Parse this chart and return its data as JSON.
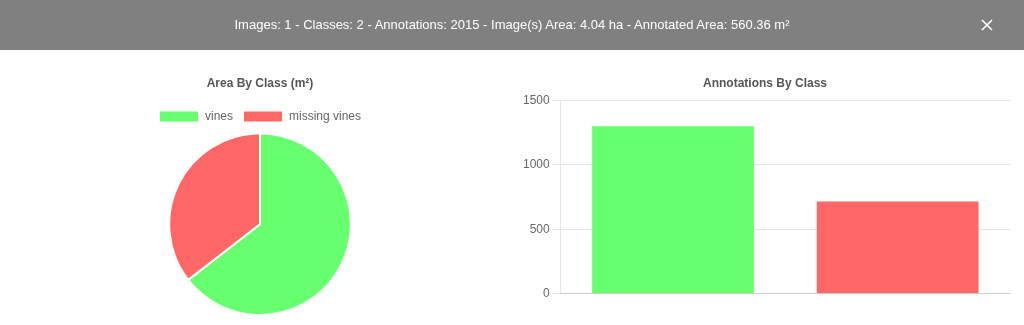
{
  "chart_data": [
    {
      "type": "other",
      "title": "Images: 1 - Classes: 2 - Annotations: 2015 - Image(s) Area: 4.04 ha - Annotated Area: 560.36 m²"
    },
    {
      "type": "pie",
      "title": "Area By Class (m²)",
      "categories": [
        "vines",
        "missing vines"
      ],
      "values": [
        64.5,
        35.5
      ],
      "colors": [
        "#66ff6e",
        "#ff6666"
      ],
      "legend": "top"
    },
    {
      "type": "bar",
      "title": "Annotations By Class",
      "categories": [
        null,
        null
      ],
      "values": [
        1300,
        715
      ],
      "colors": [
        "#66ff6e",
        "#ff6666"
      ],
      "ylim": [
        0,
        1500
      ],
      "yticks": [
        0,
        500,
        1000,
        1500
      ],
      "grid": "y"
    }
  ]
}
